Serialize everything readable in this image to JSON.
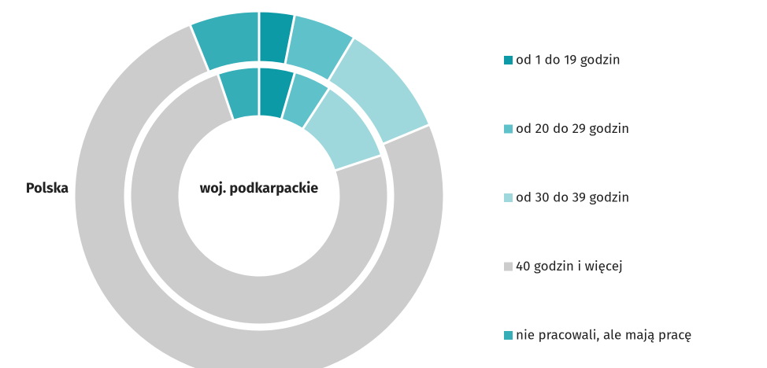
{
  "chart_data": {
    "type": "donut",
    "categories": [
      "od 1 do 19 godzin",
      "od 20 do 29 godzin",
      "od 30 do 39 godzin",
      "40 godzin i więcej",
      "nie pracowali, ale mają pracę"
    ],
    "colors": [
      "#0b9aa6",
      "#5fc1c9",
      "#9fd8dc",
      "#cccccc",
      "#35aeb8"
    ],
    "series": [
      {
        "name": "Polska",
        "values": [
          3.1,
          5.5,
          10.1,
          75.2,
          6.1
        ]
      },
      {
        "name": "woj. podkarpackie",
        "values": [
          4.5,
          4.7,
          10.7,
          74.9,
          5.2
        ]
      }
    ]
  }
}
